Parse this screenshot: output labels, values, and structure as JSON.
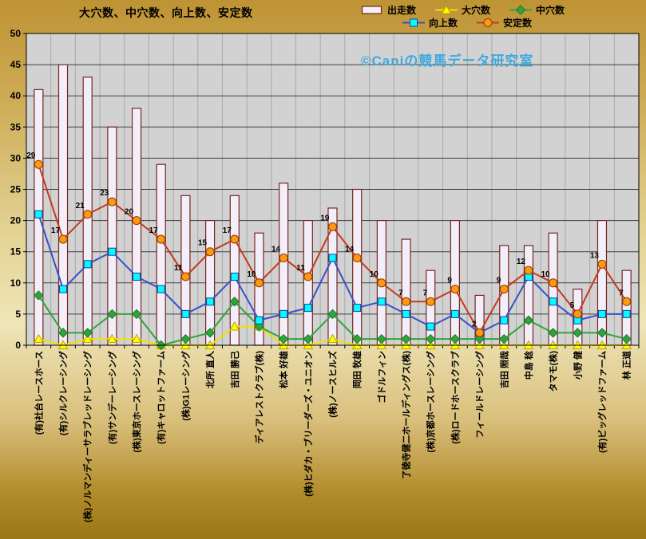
{
  "watermark": {
    "text": "©Caniの競馬データ研究室",
    "color": "#3FA9DC"
  },
  "legend": {
    "rows": [
      [
        -1,
        0,
        1
      ],
      [
        2,
        3
      ]
    ]
  },
  "chart_data": {
    "type": "bar",
    "overlay": "line",
    "title": "大穴数、中穴数、向上数、安定数",
    "xlabel": "",
    "ylabel": "",
    "ylim": [
      0,
      50
    ],
    "ytick_step": 5,
    "grid": {
      "horizontal": true,
      "vertical": true
    },
    "legend_position": "top-right",
    "plot_bg": "#D2D2D2",
    "h_grid_color": "#404040",
    "v_grid_color": "#A9A9A9",
    "categories": [
      "(有)社台レースホース",
      "(有)シルクレーシング",
      "(株)ノルマンディーサラブレッドレーシング",
      "(有)サンデーレーシング",
      "(株)東京ホースレーシング",
      "(有)キャロットファーム",
      "(株)G1レーシング",
      "北所 直人",
      "吉田 勝己",
      "ディアレストクラブ(株)",
      "松本 好雄",
      "(株)ヒダカ・ブリーダーズ・ユニオン",
      "(株)ノースヒルズ",
      "岡田 牧雄",
      "ゴドルフィン",
      "了徳寺健二ホールディングス(株)",
      "(株)京都ホースレーシング",
      "(株)ロードホースクラブ",
      "フィールドレーシング",
      "吉田 照哉",
      "中島 稔",
      "タマモ(株)",
      "小野 健",
      "(有)ビッグレッドファーム",
      "林 正道"
    ],
    "bar_series": {
      "name": "出走数",
      "fill": "#F2EFFA",
      "stroke": "#7A241E",
      "values": [
        41,
        45,
        43,
        35,
        38,
        29,
        24,
        20,
        24,
        18,
        26,
        20,
        22,
        25,
        20,
        17,
        12,
        20,
        8,
        16,
        16,
        18,
        9,
        20,
        12
      ]
    },
    "series": [
      {
        "name": "大穴数",
        "marker": "triangle",
        "fill": "#FFFF00",
        "stroke": "#B8A000",
        "line_color": "#F0E000",
        "values": [
          1,
          0,
          1,
          1,
          1,
          0,
          0,
          0,
          3,
          3,
          0,
          0,
          1,
          0,
          0,
          0,
          0,
          0,
          0,
          0,
          0,
          0,
          0,
          0,
          0
        ]
      },
      {
        "name": "中穴数",
        "marker": "diamond",
        "fill": "#2FA43C",
        "stroke": "#1E7A2A",
        "line_color": "#2FA43C",
        "values": [
          8,
          2,
          2,
          5,
          5,
          0,
          1,
          2,
          7,
          3,
          1,
          1,
          5,
          1,
          1,
          1,
          1,
          1,
          1,
          1,
          4,
          2,
          2,
          2,
          1
        ]
      },
      {
        "name": "向上数",
        "marker": "square",
        "fill": "#00FFFF",
        "stroke": "#1A3FAA",
        "line_color": "#3A50C8",
        "values": [
          21,
          9,
          13,
          15,
          11,
          9,
          5,
          7,
          11,
          4,
          5,
          6,
          14,
          6,
          7,
          5,
          3,
          5,
          2,
          4,
          11,
          7,
          4,
          5,
          5
        ]
      },
      {
        "name": "安定数",
        "marker": "circle",
        "fill": "#FF9913",
        "stroke": "#8A3E00",
        "line_color": "#C43A1E",
        "data_labels": true,
        "values": [
          29,
          17,
          21,
          23,
          20,
          17,
          11,
          15,
          17,
          10,
          14,
          11,
          19,
          14,
          10,
          7,
          7,
          9,
          2,
          9,
          12,
          10,
          5,
          13,
          7
        ]
      }
    ]
  }
}
